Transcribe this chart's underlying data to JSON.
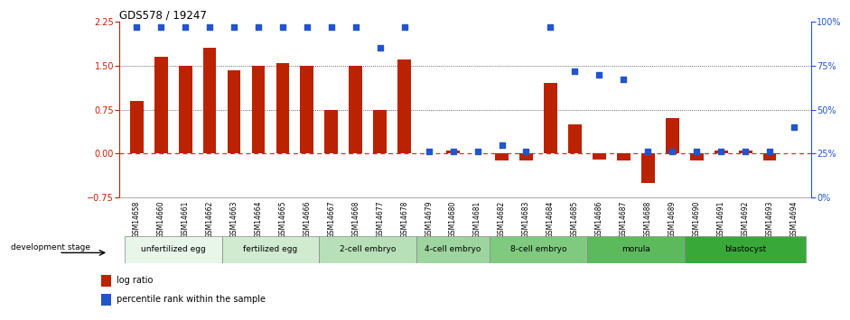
{
  "title": "GDS578 / 19247",
  "samples": [
    "GSM14658",
    "GSM14660",
    "GSM14661",
    "GSM14662",
    "GSM14663",
    "GSM14664",
    "GSM14665",
    "GSM14666",
    "GSM14667",
    "GSM14668",
    "GSM14677",
    "GSM14678",
    "GSM14679",
    "GSM14680",
    "GSM14681",
    "GSM14682",
    "GSM14683",
    "GSM14684",
    "GSM14685",
    "GSM14686",
    "GSM14687",
    "GSM14688",
    "GSM14689",
    "GSM14690",
    "GSM14691",
    "GSM14692",
    "GSM14693",
    "GSM14694"
  ],
  "log_ratio": [
    0.9,
    1.65,
    1.5,
    1.8,
    1.42,
    1.5,
    1.55,
    1.5,
    0.75,
    1.5,
    0.75,
    1.6,
    0.0,
    0.05,
    0.0,
    -0.12,
    -0.12,
    1.2,
    0.5,
    -0.1,
    -0.12,
    -0.5,
    0.6,
    -0.12,
    0.05,
    0.05,
    -0.12,
    0.0
  ],
  "percentile": [
    97,
    97,
    97,
    97,
    97,
    97,
    97,
    97,
    97,
    97,
    85,
    97,
    26,
    26,
    26,
    30,
    26,
    97,
    72,
    70,
    67,
    26,
    26,
    26,
    26,
    26,
    26,
    40
  ],
  "stages": [
    {
      "name": "unfertilized egg",
      "start": 0,
      "end": 4,
      "color": "#e8f5e9"
    },
    {
      "name": "fertilized egg",
      "start": 4,
      "end": 8,
      "color": "#c8e6c9"
    },
    {
      "name": "2-cell embryo",
      "start": 8,
      "end": 12,
      "color": "#a5d6a7"
    },
    {
      "name": "4-cell embryo",
      "start": 12,
      "end": 15,
      "color": "#81c784"
    },
    {
      "name": "8-cell embryo",
      "start": 15,
      "end": 19,
      "color": "#66bb6a"
    },
    {
      "name": "morula",
      "start": 19,
      "end": 23,
      "color": "#4caf50"
    },
    {
      "name": "blastocyst",
      "start": 23,
      "end": 28,
      "color": "#2e7d32"
    }
  ],
  "ylim_left": [
    -0.75,
    2.25
  ],
  "ylim_right": [
    0,
    100
  ],
  "yticks_left": [
    -0.75,
    0.0,
    0.75,
    1.5,
    2.25
  ],
  "yticks_right": [
    0,
    25,
    50,
    75,
    100
  ],
  "bar_color": "#bb2200",
  "dot_color": "#2255cc",
  "zero_line_color": "#cc3333",
  "grid_color": "#333333",
  "bg_color": "#ffffff",
  "legend_log": "log ratio",
  "legend_pct": "percentile rank within the sample"
}
